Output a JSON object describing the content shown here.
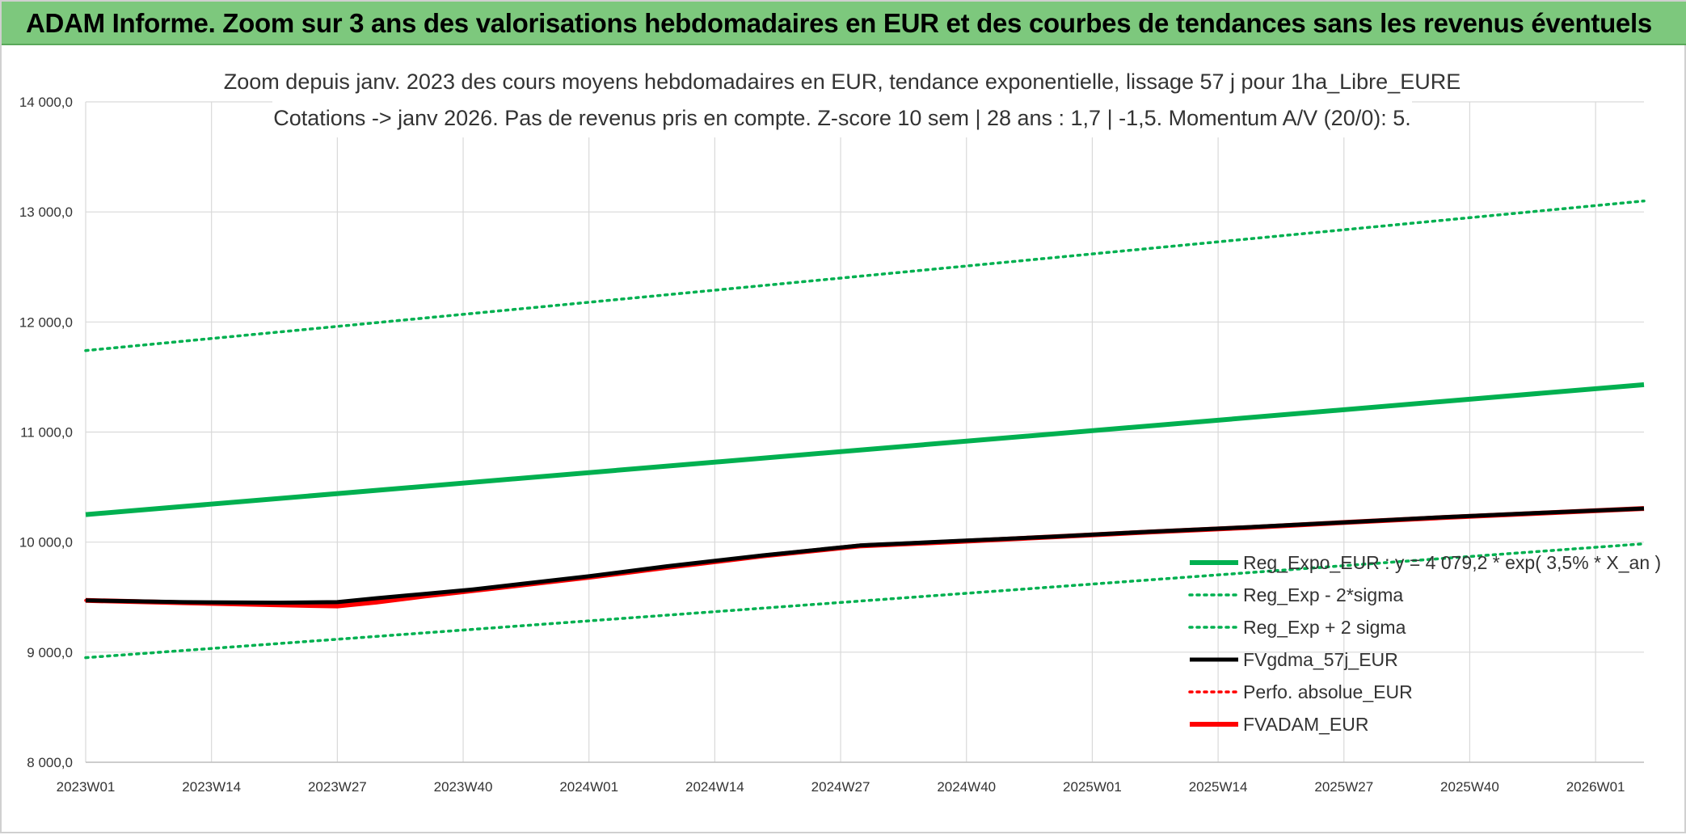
{
  "banner": {
    "title": "ADAM Informe. Zoom sur 3 ans des valorisations hebdomadaires en EUR et des courbes de tendances sans les revenus éventuels"
  },
  "colors": {
    "banner_bg": "#7dc87d",
    "green": "#00b050",
    "red": "#ff0000",
    "black": "#000000",
    "grid": "#d9d9d9"
  },
  "chart_data": {
    "type": "line",
    "title_lines": [
      "Zoom depuis janv. 2023 des cours moyens hebdomadaires en EUR, tendance exponentielle, lissage 57 j pour 1ha_Libre_EURE",
      "Cotations -> janv 2026. Pas de revenus pris en compte. Z-score 10 sem | 28 ans : 1,7 | -1,5. Momentum A/V (20/0): 5."
    ],
    "ylim": [
      8000,
      14000
    ],
    "ytick_values": [
      8000,
      9000,
      10000,
      11000,
      12000,
      13000,
      14000
    ],
    "ytick_labels": [
      "8 000,0",
      "9 000,0",
      "10 000,0",
      "11 000,0",
      "12 000,0",
      "13 000,0",
      "14 000,0"
    ],
    "xlim": [
      0,
      161
    ],
    "xtick_values": [
      0,
      13,
      26,
      39,
      52,
      65,
      78,
      91,
      104,
      117,
      130,
      143,
      156
    ],
    "xtick_labels": [
      "2023W01",
      "2023W14",
      "2023W27",
      "2023W40",
      "2024W01",
      "2024W14",
      "2024W27",
      "2024W40",
      "2025W01",
      "2025W14",
      "2025W27",
      "2025W40",
      "2026W01"
    ],
    "series": [
      {
        "name": "Reg_Expo_EUR : y = 4 079,2 * exp( 3,5% *  X_an )",
        "style": "solid-thick",
        "color": "#00b050",
        "x": [
          0,
          161
        ],
        "y": [
          10250,
          11430
        ]
      },
      {
        "name": "Reg_Exp - 2*sigma",
        "style": "dotted",
        "color": "#00b050",
        "x": [
          0,
          161
        ],
        "y": [
          8950,
          9985
        ]
      },
      {
        "name": "Reg_Exp + 2 sigma",
        "style": "dotted",
        "color": "#00b050",
        "x": [
          0,
          161
        ],
        "y": [
          11740,
          13100
        ]
      },
      {
        "name": "FVgdma_57j_EUR",
        "style": "solid",
        "color": "#000000",
        "x": [
          0,
          10,
          20,
          26,
          30,
          35,
          40,
          45,
          52,
          60,
          70,
          80,
          90,
          100,
          110,
          120,
          130,
          140,
          150,
          161
        ],
        "y": [
          9470,
          9455,
          9450,
          9455,
          9490,
          9530,
          9570,
          9620,
          9690,
          9780,
          9880,
          9970,
          10010,
          10050,
          10095,
          10135,
          10180,
          10225,
          10265,
          10305
        ]
      },
      {
        "name": "Perfo. absolue_EUR",
        "style": "dotted",
        "color": "#ff0000",
        "x": [
          0,
          10,
          20,
          26,
          30,
          35,
          40,
          45,
          52,
          60,
          70,
          80,
          90,
          100,
          110,
          120,
          130,
          140,
          150,
          161
        ],
        "y": [
          9470,
          9450,
          9430,
          9420,
          9455,
          9510,
          9560,
          9610,
          9680,
          9770,
          9875,
          9965,
          10005,
          10048,
          10092,
          10132,
          10178,
          10222,
          10262,
          10305
        ]
      },
      {
        "name": "FVADAM_EUR",
        "style": "solid-thick",
        "color": "#ff0000",
        "x": [
          0,
          10,
          20,
          26,
          30,
          35,
          40,
          45,
          52,
          60,
          70,
          80,
          90,
          100,
          110,
          120,
          130,
          140,
          150,
          161
        ],
        "y": [
          9470,
          9450,
          9430,
          9420,
          9455,
          9510,
          9560,
          9610,
          9680,
          9770,
          9875,
          9965,
          10005,
          10048,
          10092,
          10132,
          10178,
          10222,
          10262,
          10305
        ]
      }
    ],
    "legend_position": "right"
  }
}
